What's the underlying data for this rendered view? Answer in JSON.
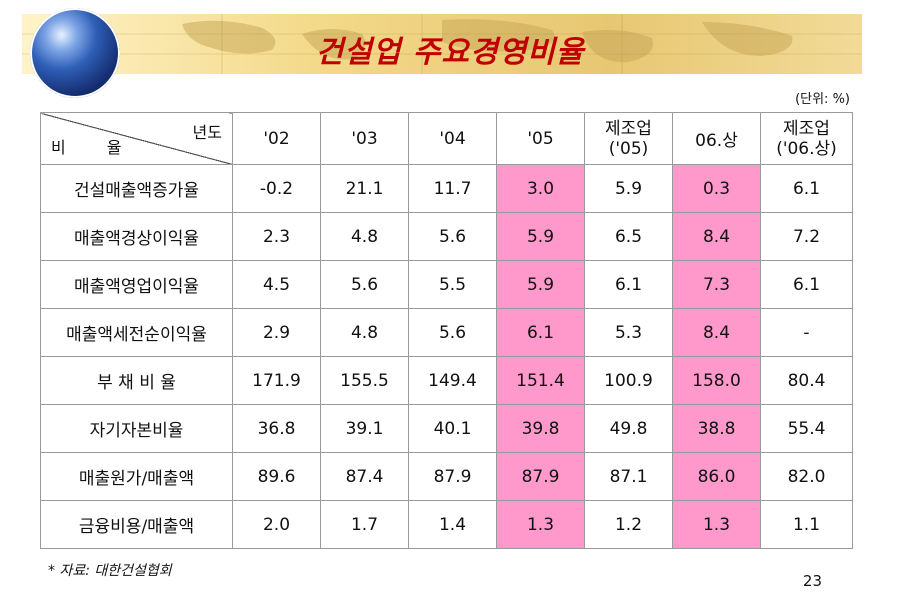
{
  "title": "건설업 주요경영비율",
  "unit": "(단위: %)",
  "header": {
    "corner_top": "년도",
    "corner_bottom": "비 율",
    "columns": [
      "'02",
      "'03",
      "'04",
      "'05",
      "제조업\n('05)",
      "06.상",
      "제조업\n('06.상)"
    ]
  },
  "rows": [
    {
      "label": "건설매출액증가율",
      "values": [
        "-0.2",
        "21.1",
        "11.7",
        "3.0",
        "5.9",
        "0.3",
        "6.1"
      ]
    },
    {
      "label": "매출액경상이익율",
      "values": [
        "2.3",
        "4.8",
        "5.6",
        "5.9",
        "6.5",
        "8.4",
        "7.2"
      ]
    },
    {
      "label": "매출액영업이익율",
      "values": [
        "4.5",
        "5.6",
        "5.5",
        "5.9",
        "6.1",
        "7.3",
        "6.1"
      ]
    },
    {
      "label": "매출액세전순이익율",
      "values": [
        "2.9",
        "4.8",
        "5.6",
        "6.1",
        "5.3",
        "8.4",
        "-"
      ]
    },
    {
      "label": "부 채 비 율",
      "values": [
        "171.9",
        "155.5",
        "149.4",
        "151.4",
        "100.9",
        "158.0",
        "80.4"
      ]
    },
    {
      "label": "자기자본비율",
      "values": [
        "36.8",
        "39.1",
        "40.1",
        "39.8",
        "49.8",
        "38.8",
        "55.4"
      ]
    },
    {
      "label": "매출원가/매출액",
      "values": [
        "89.6",
        "87.4",
        "87.9",
        "87.9",
        "87.1",
        "86.0",
        "82.0"
      ]
    },
    {
      "label": "금융비용/매출액",
      "values": [
        "2.0",
        "1.7",
        "1.4",
        "1.3",
        "1.2",
        "1.3",
        "1.1"
      ]
    }
  ],
  "highlight_columns": [
    3,
    5
  ],
  "highlight_color": "#ff99cc",
  "title_color": "#c00000",
  "source": "* 자료: 대한건설협회",
  "page_number": "23"
}
